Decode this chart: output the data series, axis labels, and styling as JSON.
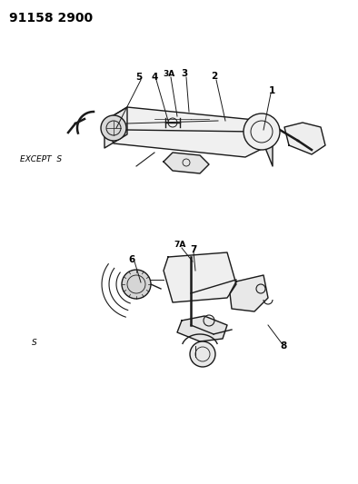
{
  "title_code": "91158 2900",
  "background_color": "#ffffff",
  "line_color": "#1a1a1a",
  "text_color": "#000000",
  "label_except_s": "EXCEPT  S",
  "label_s": "S",
  "figsize": [
    3.94,
    5.33
  ],
  "dpi": 100
}
